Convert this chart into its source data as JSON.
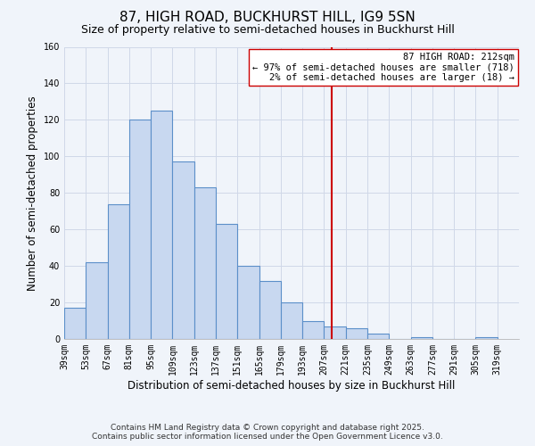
{
  "title": "87, HIGH ROAD, BUCKHURST HILL, IG9 5SN",
  "subtitle": "Size of property relative to semi-detached houses in Buckhurst Hill",
  "xlabel": "Distribution of semi-detached houses by size in Buckhurst Hill",
  "ylabel": "Number of semi-detached properties",
  "bar_color": "#c8d8f0",
  "bar_edge_color": "#5b8fc9",
  "bins": [
    39,
    53,
    67,
    81,
    95,
    109,
    123,
    137,
    151,
    165,
    179,
    193,
    207,
    221,
    235,
    249,
    263,
    277,
    291,
    305,
    319
  ],
  "counts": [
    17,
    42,
    74,
    120,
    125,
    97,
    83,
    63,
    40,
    32,
    20,
    10,
    7,
    6,
    3,
    0,
    1,
    0,
    0,
    1
  ],
  "tick_labels": [
    "39sqm",
    "53sqm",
    "67sqm",
    "81sqm",
    "95sqm",
    "109sqm",
    "123sqm",
    "137sqm",
    "151sqm",
    "165sqm",
    "179sqm",
    "193sqm",
    "207sqm",
    "221sqm",
    "235sqm",
    "249sqm",
    "263sqm",
    "277sqm",
    "291sqm",
    "305sqm",
    "319sqm"
  ],
  "vline_x": 212,
  "vline_color": "#cc0000",
  "annotation_title": "87 HIGH ROAD: 212sqm",
  "annotation_line1": "← 97% of semi-detached houses are smaller (718)",
  "annotation_line2": "2% of semi-detached houses are larger (18) →",
  "annotation_box_color": "#ffffff",
  "annotation_box_edge": "#cc0000",
  "ylim": [
    0,
    160
  ],
  "yticks": [
    0,
    20,
    40,
    60,
    80,
    100,
    120,
    140,
    160
  ],
  "grid_color": "#d0d8e8",
  "background_color": "#f0f4fa",
  "footer1": "Contains HM Land Registry data © Crown copyright and database right 2025.",
  "footer2": "Contains public sector information licensed under the Open Government Licence v3.0.",
  "title_fontsize": 11,
  "subtitle_fontsize": 9,
  "axis_label_fontsize": 8.5,
  "tick_fontsize": 7,
  "annotation_fontsize": 7.5,
  "footer_fontsize": 6.5
}
